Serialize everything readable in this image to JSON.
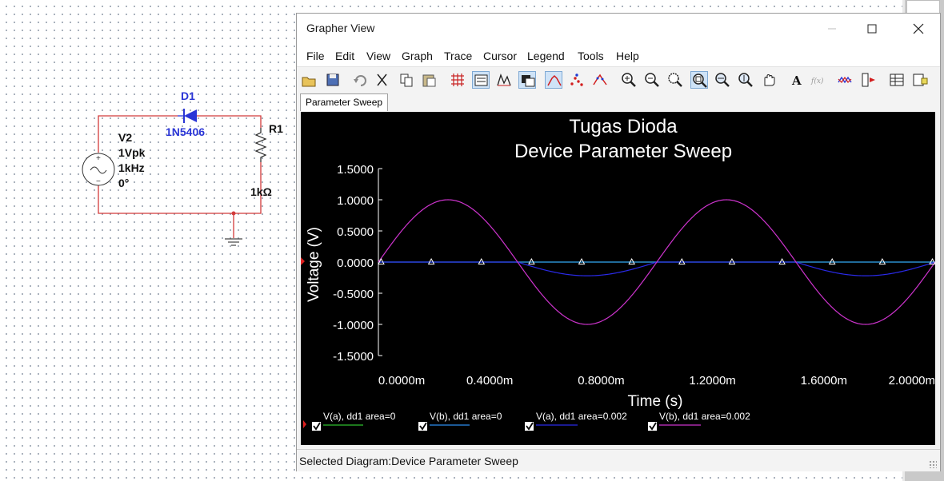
{
  "schematic": {
    "diode_ref": "D1",
    "diode_model": "1N5406",
    "source_ref": "V2",
    "source_amp": "1Vpk",
    "source_freq": "1kHz",
    "source_phase": "0°",
    "resistor_ref": "R1",
    "resistor_value": "1kΩ",
    "colors": {
      "wire": "#d23a3a",
      "diode": "#2a35d6",
      "text": "#111111"
    }
  },
  "window": {
    "title": "Grapher View",
    "menu": [
      "File",
      "Edit",
      "View",
      "Graph",
      "Trace",
      "Cursor",
      "Legend",
      "Tools",
      "Help"
    ],
    "toolbar_icons": [
      "open-icon",
      "save-icon",
      "undo-icon",
      "cut-icon",
      "copy-icon",
      "paste-icon",
      "grid-icon",
      "legend-toggle-icon",
      "pan-chart-icon",
      "invert-colors-icon",
      "line-plot-icon",
      "scatter-plot-icon",
      "marker-plot-icon",
      "zoom-in-icon",
      "zoom-out-icon",
      "zoom-area-icon",
      "zoom-fit-icon",
      "zoom-x-icon",
      "zoom-y-icon",
      "hand-pan-icon",
      "text-tool-icon",
      "formula-icon",
      "trace-icon",
      "cursor-icon",
      "export-table-icon",
      "export-image-icon"
    ],
    "active_tab": "Parameter Sweep",
    "status": "Selected Diagram:Device Parameter Sweep"
  },
  "chart_data": {
    "type": "line",
    "title": "Tugas Dioda",
    "subtitle": "Device Parameter Sweep",
    "xlabel": "Time (s)",
    "ylabel": "Voltage (V)",
    "xlim": [
      0,
      0.002
    ],
    "ylim": [
      -1.5,
      1.5
    ],
    "x_ticks": [
      "0.0000m",
      "0.4000m",
      "0.8000m",
      "1.2000m",
      "1.6000m",
      "2.0000m"
    ],
    "y_ticks": [
      "1.5000",
      "1.0000",
      "0.5000",
      "0.0000",
      "-0.5000",
      "-1.0000",
      "-1.5000"
    ],
    "legend_placement": "bottom",
    "series": [
      {
        "name": "V(a), dd1 area=0",
        "color": "#2fbf2f",
        "kind": "flat_zero_markers"
      },
      {
        "name": "V(b), dd1 area=0",
        "color": "#2e8ef0",
        "kind": "flat_zero"
      },
      {
        "name": "V(a), dd1 area=0.002",
        "color": "#2a2ae8",
        "kind": "clipped_negative_half",
        "amplitude": -0.22,
        "frequency_hz": 1000
      },
      {
        "name": "V(b), dd1 area=0.002",
        "color": "#cc33cc",
        "kind": "sine",
        "amplitude": 1.0,
        "frequency_hz": 1000
      }
    ],
    "marker_x": [
      1e-05,
      0.00019,
      0.00037,
      0.00055,
      0.00073,
      0.00091,
      0.00109,
      0.00127,
      0.00145,
      0.00163,
      0.00181,
      0.00199
    ]
  }
}
